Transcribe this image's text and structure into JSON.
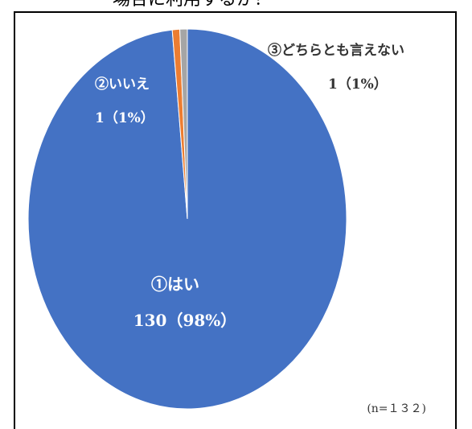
{
  "title_partial": "場合に利用するか？",
  "chart_data": {
    "type": "pie",
    "title": "",
    "categories": [
      "①はい",
      "②いいえ",
      "③どちらとも言えない"
    ],
    "values": [
      130,
      1,
      1
    ],
    "percent_labels": [
      "130（98%）",
      "1（1%）",
      "1（1%）"
    ],
    "colors": [
      "#4472C4",
      "#ED7D31",
      "#A5A5A5"
    ],
    "label_colors": [
      "#ffffff",
      "#ffffff",
      "#333333"
    ],
    "sample_note": "(n=１３２)",
    "legend": "none"
  }
}
